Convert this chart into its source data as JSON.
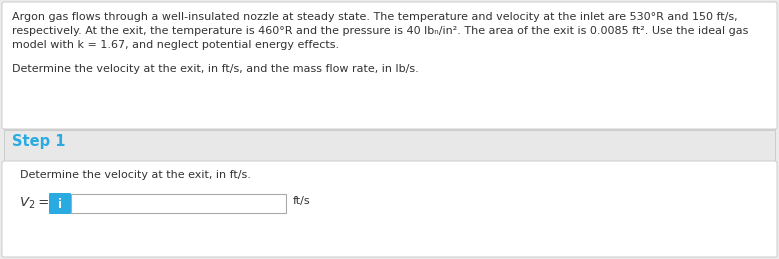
{
  "bg_color": "#ebebeb",
  "top_box_color": "#ffffff",
  "step_box_color": "#e8e8e8",
  "bottom_box_color": "#ffffff",
  "step_label_color": "#29abe2",
  "text_color": "#333333",
  "line1": "Argon gas flows through a well-insulated nozzle at steady state. The temperature and velocity at the inlet are 530°R and 150 ft/s,",
  "line2": "respectively. At the exit, the temperature is 460°R and the pressure is 40 lbₙ/in². The area of the exit is 0.0085 ft². Use the ideal gas",
  "line3": "model with k = 1.67, and neglect potential energy effects.",
  "line4": "Determine the velocity at the exit, in ft/s, and the mass flow rate, in lb/s.",
  "step_label": "Step 1",
  "sub_label": "Determine the velocity at the exit, in ft/s.",
  "eq_label_v": "V",
  "eq_label_2": "2",
  "eq_label_eq": " =",
  "unit_label": "ft/s",
  "info_btn_color": "#29abe2",
  "info_btn_text": "i",
  "info_btn_text_color": "#ffffff",
  "input_box_color": "#ffffff",
  "input_border_color": "#aaaaaa",
  "border_color": "#cccccc",
  "font_size_body": 8.0,
  "font_size_step": 10.5,
  "font_size_sublabel": 8.0,
  "font_size_eq": 9.5
}
